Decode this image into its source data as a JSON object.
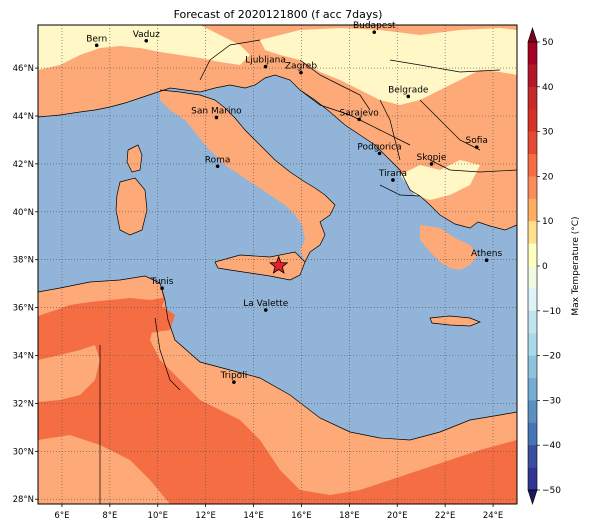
{
  "title": "Forecast of 2020121800 (f acc 7days)",
  "map": {
    "lon_range": [
      5,
      25
    ],
    "lat_range": [
      27.8,
      47.8
    ],
    "lon_ticks": [
      {
        "value": 6,
        "label": "6°E"
      },
      {
        "value": 8,
        "label": "8°E"
      },
      {
        "value": 10,
        "label": "10°E"
      },
      {
        "value": 12,
        "label": "12°E"
      },
      {
        "value": 14,
        "label": "14°E"
      },
      {
        "value": 16,
        "label": "16°E"
      },
      {
        "value": 18,
        "label": "18°E"
      },
      {
        "value": 20,
        "label": "20°E"
      },
      {
        "value": 22,
        "label": "22°E"
      },
      {
        "value": 24,
        "label": "24°E"
      }
    ],
    "lat_ticks": [
      {
        "value": 28,
        "label": "28°N"
      },
      {
        "value": 30,
        "label": "30°N"
      },
      {
        "value": 32,
        "label": "32°N"
      },
      {
        "value": 34,
        "label": "34°N"
      },
      {
        "value": 36,
        "label": "36°N"
      },
      {
        "value": 38,
        "label": "38°N"
      },
      {
        "value": 40,
        "label": "40°N"
      },
      {
        "value": 42,
        "label": "42°N"
      },
      {
        "value": 44,
        "label": "44°N"
      },
      {
        "value": 46,
        "label": "46°N"
      }
    ],
    "grid": true,
    "colors": {
      "sea": "#91b4d8",
      "band_0_10": "#fff7c6",
      "band_10_20": "#fdaa78",
      "band_20_30": "#f46d43",
      "border": "#000000"
    },
    "cities": [
      {
        "name": "Bern",
        "lon": 7.45,
        "lat": 46.95
      },
      {
        "name": "Vaduz",
        "lon": 9.52,
        "lat": 47.14
      },
      {
        "name": "Budapest",
        "lon": 19.04,
        "lat": 47.5
      },
      {
        "name": "Ljubljana",
        "lon": 14.5,
        "lat": 46.06
      },
      {
        "name": "Zagreb",
        "lon": 15.98,
        "lat": 45.81
      },
      {
        "name": "Belgrade",
        "lon": 20.46,
        "lat": 44.82
      },
      {
        "name": "San Marino",
        "lon": 12.45,
        "lat": 43.94
      },
      {
        "name": "Sarajevo",
        "lon": 18.41,
        "lat": 43.86
      },
      {
        "name": "Sofia",
        "lon": 23.32,
        "lat": 42.7
      },
      {
        "name": "Podgorica",
        "lon": 19.26,
        "lat": 42.44
      },
      {
        "name": "Skopje",
        "lon": 21.43,
        "lat": 42.0
      },
      {
        "name": "Roma",
        "lon": 12.5,
        "lat": 41.9
      },
      {
        "name": "Tirana",
        "lon": 19.82,
        "lat": 41.33
      },
      {
        "name": "Athens",
        "lon": 23.73,
        "lat": 37.98
      },
      {
        "name": "Tunis",
        "lon": 10.18,
        "lat": 36.81
      },
      {
        "name": "La Valette",
        "lon": 14.51,
        "lat": 35.9
      },
      {
        "name": "Tripoli",
        "lon": 13.18,
        "lat": 32.89
      }
    ],
    "marker": {
      "lon": 15.05,
      "lat": 37.75,
      "symbol": "star",
      "color": "#e8202a"
    }
  },
  "colorbar": {
    "label": "Max Temperature (°C)",
    "ticks": [
      {
        "value": 50,
        "label": "50"
      },
      {
        "value": 40,
        "label": "40"
      },
      {
        "value": 30,
        "label": "30"
      },
      {
        "value": 20,
        "label": "20"
      },
      {
        "value": 10,
        "label": "10"
      },
      {
        "value": 0,
        "label": "0"
      },
      {
        "value": -10,
        "label": "−10"
      },
      {
        "value": -20,
        "label": "−20"
      },
      {
        "value": -30,
        "label": "−30"
      },
      {
        "value": -40,
        "label": "−40"
      },
      {
        "value": -50,
        "label": "−50"
      }
    ],
    "range": [
      -50,
      50
    ],
    "bands": [
      {
        "from": 45,
        "to": 50,
        "color": "#a50026"
      },
      {
        "from": 40,
        "to": 45,
        "color": "#b4172a"
      },
      {
        "from": 35,
        "to": 40,
        "color": "#c62a2a"
      },
      {
        "from": 30,
        "to": 35,
        "color": "#d73027"
      },
      {
        "from": 25,
        "to": 30,
        "color": "#e44a33"
      },
      {
        "from": 20,
        "to": 25,
        "color": "#f46d43"
      },
      {
        "from": 15,
        "to": 20,
        "color": "#fa8c59"
      },
      {
        "from": 10,
        "to": 15,
        "color": "#fdae61"
      },
      {
        "from": 5,
        "to": 10,
        "color": "#fee090"
      },
      {
        "from": 0,
        "to": 5,
        "color": "#ffffbf"
      },
      {
        "from": -5,
        "to": 0,
        "color": "#f2fae0"
      },
      {
        "from": -10,
        "to": -5,
        "color": "#e0f3f8"
      },
      {
        "from": -15,
        "to": -10,
        "color": "#c2e4ef"
      },
      {
        "from": -20,
        "to": -15,
        "color": "#abd9e9"
      },
      {
        "from": -25,
        "to": -20,
        "color": "#8fc2dd"
      },
      {
        "from": -30,
        "to": -25,
        "color": "#74add1"
      },
      {
        "from": -35,
        "to": -30,
        "color": "#5b8fc2"
      },
      {
        "from": -40,
        "to": -35,
        "color": "#4575b4"
      },
      {
        "from": -45,
        "to": -40,
        "color": "#3a4fa0"
      },
      {
        "from": -50,
        "to": -45,
        "color": "#313695"
      }
    ],
    "extend_top_color": "#800020",
    "extend_bottom_color": "#1a1a5e"
  }
}
